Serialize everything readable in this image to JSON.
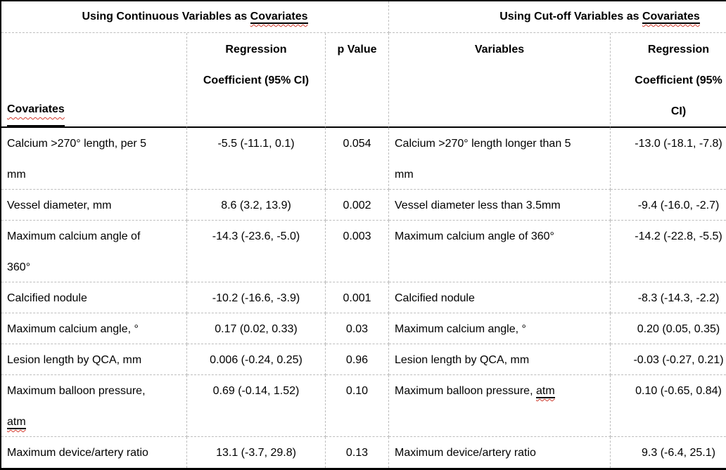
{
  "table": {
    "left": {
      "title": "Using Continuous Variables as Covariates",
      "header": {
        "covariates": "Covariates",
        "coefficient": "Regression\nCoefficient (95% CI)",
        "p_value": "p Value"
      },
      "rows": [
        {
          "covariate": "Calcium >270° length, per 5\nmm",
          "coefficient": "-5.5 (-11.1, 0.1)",
          "p": "0.054"
        },
        {
          "covariate": "Vessel diameter, mm",
          "coefficient": "8.6 (3.2, 13.9)",
          "p": "0.002"
        },
        {
          "covariate": "Maximum calcium angle of\n360°",
          "coefficient": "-14.3 (-23.6, -5.0)",
          "p": "0.003"
        },
        {
          "covariate": "Calcified nodule",
          "coefficient": "-10.2 (-16.6, -3.9)",
          "p": "0.001"
        },
        {
          "covariate": "Maximum calcium angle, °",
          "coefficient": "0.17 (0.02, 0.33)",
          "p": "0.03"
        },
        {
          "covariate": "Lesion length by QCA, mm",
          "coefficient": "0.006 (-0.24, 0.25)",
          "p": "0.96"
        },
        {
          "covariate": "Maximum balloon pressure,\natm",
          "coefficient": "0.69 (-0.14, 1.52)",
          "p": "0.10"
        },
        {
          "covariate": "Maximum device/artery ratio",
          "coefficient": "13.1 (-3.7, 29.8)",
          "p": "0.13"
        }
      ]
    },
    "right": {
      "title": "Using Cut-off Variables as Covariates",
      "header": {
        "variables": "Variables",
        "coefficient": "Regression\nCoefficient (95%\nCI)"
      },
      "rows": [
        {
          "variable": "Calcium >270° length longer than 5\nmm",
          "coefficient": "-13.0 (-18.1, -7.8)"
        },
        {
          "variable": "Vessel diameter less than 3.5mm",
          "coefficient": "-9.4 (-16.0, -2.7)"
        },
        {
          "variable": "Maximum calcium angle of 360°",
          "coefficient": "-14.2 (-22.8, -5.5)"
        },
        {
          "variable": "Calcified nodule",
          "coefficient": "-8.3 (-14.3, -2.2)"
        },
        {
          "variable": "Maximum calcium angle, °",
          "coefficient": "0.20 (0.05, 0.35)"
        },
        {
          "variable": "Lesion length by QCA, mm",
          "coefficient": "-0.03 (-0.27, 0.21)"
        },
        {
          "variable": "Maximum balloon pressure, atm",
          "coefficient": "0.10 (-0.65, 0.84)"
        },
        {
          "variable": "Maximum device/artery ratio",
          "coefficient": "9.3 (-6.4, 25.1)"
        }
      ]
    },
    "colors": {
      "text": "#000000",
      "solid_border": "#000000",
      "dashed_grid": "#bdbdbd",
      "squiggle_red": "#d23b2e",
      "background": "#ffffff"
    }
  }
}
